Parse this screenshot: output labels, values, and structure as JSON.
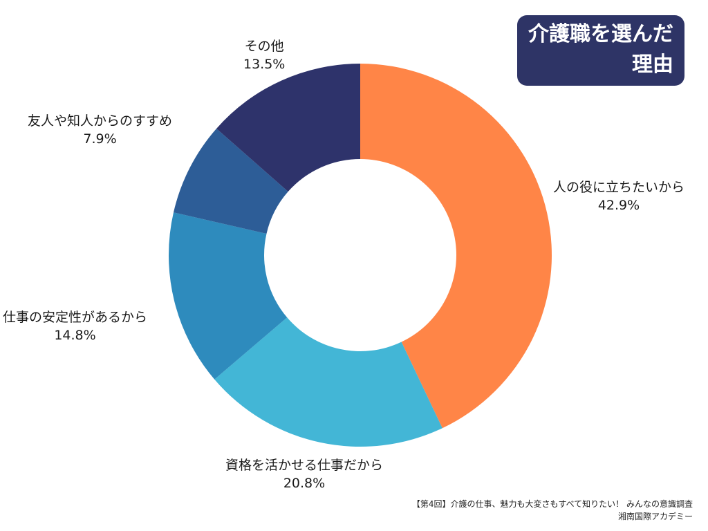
{
  "title": {
    "line1": "介護職を選んだ",
    "line2": "理由"
  },
  "chart_data": {
    "type": "pie",
    "donut": true,
    "slices": [
      {
        "label": "人の役に立ちたいから",
        "value": 42.9,
        "value_label": "42.9%",
        "color": "#ff8547"
      },
      {
        "label": "資格を活かせる仕事だから",
        "value": 20.8,
        "value_label": "20.8%",
        "color": "#43b6d6"
      },
      {
        "label": "仕事の安定性があるから",
        "value": 14.8,
        "value_label": "14.8%",
        "color": "#2e8bbd"
      },
      {
        "label": "友人や知人からのすすめ",
        "value": 7.9,
        "value_label": "7.9%",
        "color": "#2d5d97"
      },
      {
        "label": "その他",
        "value": 13.5,
        "value_label": "13.5%",
        "color": "#2e336b"
      }
    ]
  },
  "source": {
    "line1": "【第4回】介護の仕事、魅力も大変さもすべて知りたい！ みんなの意識調査",
    "line2": "湘南国際アカデミー"
  },
  "colors": {
    "title_bg": "#2e3466",
    "title_text": "#ffffff"
  }
}
